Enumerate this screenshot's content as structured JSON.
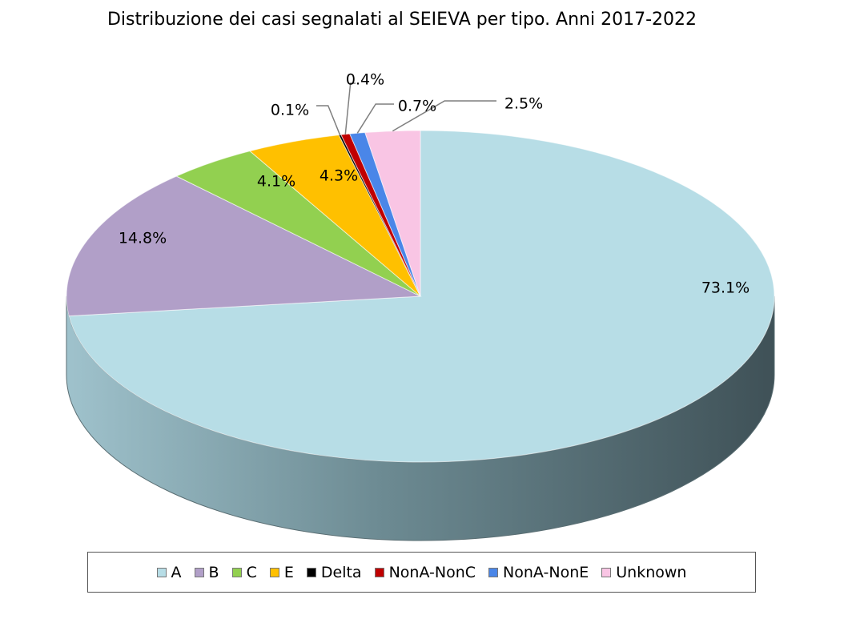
{
  "chart_data": {
    "type": "pie",
    "title": "Distribuzione dei casi segnalati al SEIEVA per tipo. Anni 2017-2022",
    "three_d": true,
    "legend_position": "bottom",
    "slices": [
      {
        "name": "A",
        "value": 73.1,
        "label": "73.1%",
        "color": "#b7dde6"
      },
      {
        "name": "B",
        "value": 14.8,
        "label": "14.8%",
        "color": "#b19fc8"
      },
      {
        "name": "C",
        "value": 4.1,
        "label": "4.1%",
        "color": "#92d050"
      },
      {
        "name": "E",
        "value": 4.3,
        "label": "4.3%",
        "color": "#ffc000"
      },
      {
        "name": "Delta",
        "value": 0.1,
        "label": "0.1%",
        "color": "#000000"
      },
      {
        "name": "NonA-NonC",
        "value": 0.4,
        "label": "0.4%",
        "color": "#c00000"
      },
      {
        "name": "NonA-NonE",
        "value": 0.7,
        "label": "0.7%",
        "color": "#4a86e8"
      },
      {
        "name": "Unknown",
        "value": 2.5,
        "label": "2.5%",
        "color": "#f9c5e4"
      }
    ]
  }
}
